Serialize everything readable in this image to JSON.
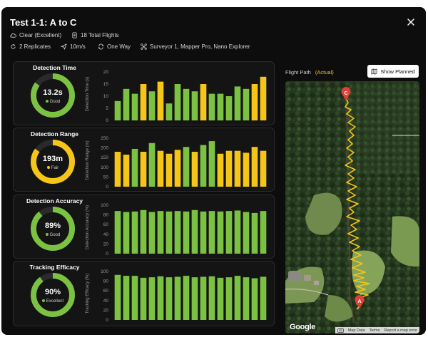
{
  "dialog": {
    "title": "Test 1-1: A to C",
    "meta": {
      "weather": "Clear (Excellent)",
      "flights": "18 Total Flights",
      "replicates": "2 Replicates",
      "speed": "10m/s",
      "direction": "One Way",
      "drones": "Surveyor 1, Mapper Pro, Nano Explorer"
    }
  },
  "colors": {
    "good": "#7cc242",
    "fair": "#f5c518",
    "track": "#2a2a2a"
  },
  "metrics": [
    {
      "title": "Detection Time",
      "value": "13.2s",
      "rating": "Good",
      "rating_color": "#7cc242",
      "gauge_fraction": 0.85,
      "gauge_color": "#7cc242",
      "chart_data": {
        "type": "bar",
        "ylabel": "Detection Time (s)",
        "ylim": [
          0,
          20
        ],
        "yticks": [
          0,
          5,
          10,
          15,
          20
        ],
        "values": [
          8,
          13,
          11,
          15,
          12,
          16,
          7,
          15,
          13,
          12,
          15,
          11,
          11,
          10,
          14,
          13,
          15,
          18
        ],
        "colors": [
          "g",
          "g",
          "g",
          "y",
          "g",
          "y",
          "g",
          "g",
          "g",
          "g",
          "y",
          "g",
          "g",
          "g",
          "g",
          "g",
          "y",
          "y"
        ]
      }
    },
    {
      "title": "Detection Range",
      "value": "193m",
      "rating": "Fair",
      "rating_color": "#f5c518",
      "gauge_fraction": 0.85,
      "gauge_color": "#f5c518",
      "chart_data": {
        "type": "bar",
        "ylabel": "Detection Range (m)",
        "ylim": [
          0,
          250
        ],
        "yticks": [
          0,
          50,
          100,
          150,
          200,
          250
        ],
        "values": [
          180,
          165,
          195,
          180,
          225,
          185,
          170,
          190,
          205,
          180,
          215,
          235,
          170,
          185,
          185,
          175,
          205,
          185
        ],
        "colors": [
          "y",
          "y",
          "g",
          "y",
          "g",
          "y",
          "y",
          "y",
          "g",
          "y",
          "g",
          "g",
          "y",
          "y",
          "y",
          "y",
          "y",
          "y"
        ]
      }
    },
    {
      "title": "Detection Accuracy",
      "value": "89%",
      "rating": "Good",
      "rating_color": "#7cc242",
      "gauge_fraction": 0.89,
      "gauge_color": "#7cc242",
      "chart_data": {
        "type": "bar",
        "ylabel": "Detection Accuracy (%)",
        "ylim": [
          0,
          100
        ],
        "yticks": [
          0,
          20,
          40,
          60,
          80,
          100
        ],
        "values": [
          88,
          86,
          87,
          90,
          86,
          88,
          87,
          88,
          87,
          90,
          87,
          88,
          87,
          88,
          89,
          86,
          84,
          88
        ],
        "colors": [
          "g",
          "g",
          "g",
          "g",
          "g",
          "g",
          "g",
          "g",
          "g",
          "g",
          "g",
          "g",
          "g",
          "g",
          "g",
          "g",
          "g",
          "g"
        ]
      }
    },
    {
      "title": "Tracking Efficacy",
      "value": "90%",
      "rating": "Excellent",
      "rating_color": "#7cc242",
      "gauge_fraction": 0.9,
      "gauge_color": "#7cc242",
      "chart_data": {
        "type": "bar",
        "ylabel": "Tracking Efficacy (%)",
        "ylim": [
          0,
          100
        ],
        "yticks": [
          0,
          20,
          40,
          60,
          80,
          100
        ],
        "values": [
          93,
          91,
          91,
          87,
          88,
          90,
          88,
          89,
          91,
          88,
          89,
          90,
          87,
          88,
          91,
          88,
          86,
          89
        ],
        "colors": [
          "g",
          "g",
          "g",
          "g",
          "g",
          "g",
          "g",
          "g",
          "g",
          "g",
          "g",
          "g",
          "g",
          "g",
          "g",
          "g",
          "g",
          "g"
        ]
      }
    }
  ],
  "flight_path": {
    "label": "Flight Path",
    "mode": "(Actual)",
    "show_planned_label": "Show Planned",
    "start_marker": "A",
    "end_marker": "C",
    "google_logo": "Google",
    "footer": {
      "map_data": "Map Data",
      "terms": "Terms",
      "report": "Report a map error"
    }
  }
}
